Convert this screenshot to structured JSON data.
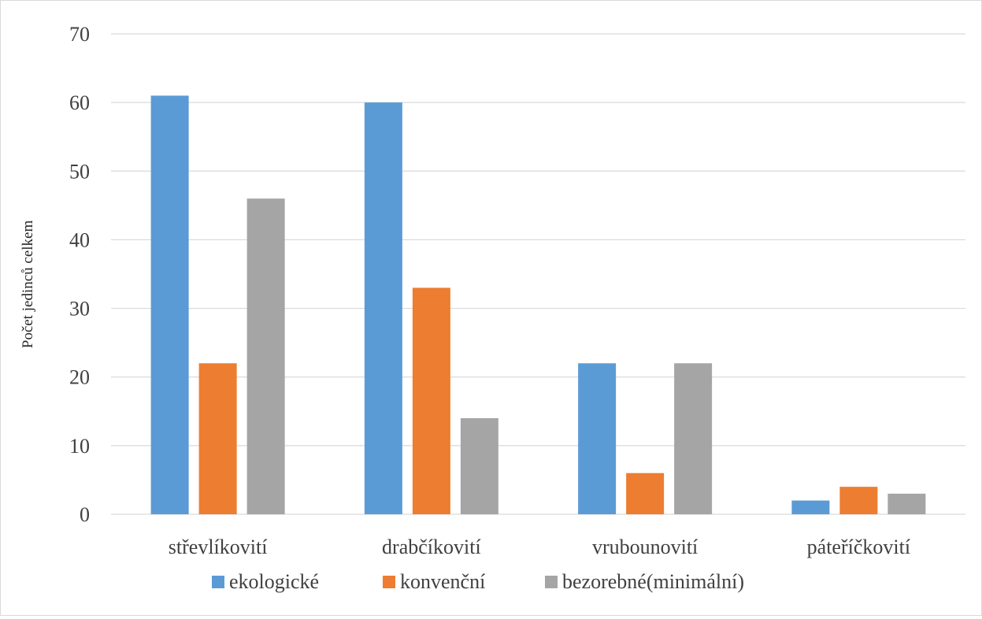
{
  "chart_data": {
    "type": "bar",
    "ylabel": "Počet jedinců celkem",
    "xlabel": "",
    "ylim": [
      0,
      70
    ],
    "yticks": [
      0,
      10,
      20,
      30,
      40,
      50,
      60,
      70
    ],
    "grid": true,
    "legend_position": "bottom",
    "categories": [
      "střevlíkovití",
      "drabčíkovití",
      "vrubounovití",
      "páteříčkovití"
    ],
    "series": [
      {
        "name": "ekologické",
        "color": "#5b9bd5",
        "values": [
          61,
          60,
          22,
          2
        ]
      },
      {
        "name": "konvenční",
        "color": "#ed7d31",
        "values": [
          22,
          33,
          6,
          4
        ]
      },
      {
        "name": "bezorebné(minimální)",
        "color": "#a5a5a5",
        "values": [
          46,
          14,
          22,
          3
        ]
      }
    ]
  }
}
